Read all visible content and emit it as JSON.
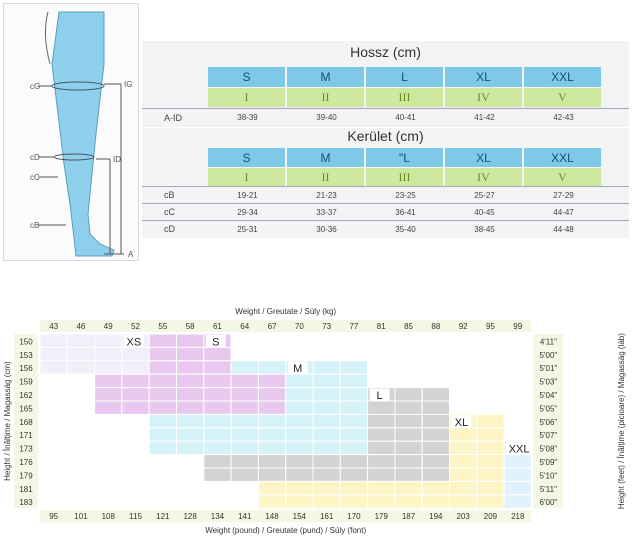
{
  "leg": {
    "labels": {
      "cG": "cG",
      "IG": "IG",
      "cD": "cD",
      "ID": "ID",
      "cC": "cC",
      "cB": "cB",
      "A": "A"
    }
  },
  "length_table": {
    "title": "Hossz (cm)",
    "sizes": [
      "S",
      "M",
      "L",
      "XL",
      "XXL"
    ],
    "roman": [
      "I",
      "II",
      "III",
      "IV",
      "V"
    ],
    "rows": [
      {
        "label": "A-ID",
        "values": [
          "38-39",
          "39-40",
          "40-41",
          "41-42",
          "42-43"
        ]
      }
    ]
  },
  "circ_table": {
    "title": "Kerület (cm)",
    "sizes": [
      "S",
      "M",
      "\"L",
      "XL",
      "XXL"
    ],
    "roman": [
      "I",
      "II",
      "III",
      "IV",
      "V"
    ],
    "rows": [
      {
        "label": "cB",
        "values": [
          "19-21",
          "21-23",
          "23-25",
          "25-27",
          "27-29"
        ]
      },
      {
        "label": "cC",
        "values": [
          "29-34",
          "33-37",
          "36-41",
          "40-45",
          "44-47"
        ]
      },
      {
        "label": "cD",
        "values": [
          "25-31",
          "30-36",
          "35-40",
          "38-45",
          "44-48"
        ]
      }
    ]
  },
  "chart_data": {
    "type": "heatmap",
    "top_axis_title": "Weight / Greutate / Súly (kg)",
    "bottom_axis_title": "Weight (pound) / Greutate (pund) / Súly (font)",
    "left_axis_title": "Height / Înălțime / Magasság (cm)",
    "right_axis_title": "Height (feet) / Înălțime (picioare) / Magasság (láb)",
    "weights_kg": [
      "43",
      "46",
      "49",
      "52",
      "55",
      "58",
      "61",
      "64",
      "67",
      "70",
      "73",
      "77",
      "81",
      "85",
      "88",
      "92",
      "95",
      "99"
    ],
    "weights_lb": [
      "95",
      "101",
      "108",
      "115",
      "121",
      "128",
      "134",
      "141",
      "148",
      "154",
      "161",
      "170",
      "179",
      "187",
      "194",
      "203",
      "209",
      "218"
    ],
    "heights_cm": [
      "150",
      "153",
      "156",
      "159",
      "162",
      "165",
      "168",
      "171",
      "173",
      "176",
      "179",
      "181",
      "183"
    ],
    "heights_ft": [
      "4'11\"",
      "5'00\"",
      "5'01\"",
      "5'03\"",
      "5'04\"",
      "5'05\"",
      "5'06\"",
      "5'07\"",
      "5'08\"",
      "5'09\"",
      "5'10\"",
      "5'11\"",
      "6'00\""
    ],
    "zones": [
      {
        "name": "XS",
        "color": "#f2eefa",
        "cells": [
          [
            0,
            0
          ],
          [
            1,
            0
          ],
          [
            2,
            0
          ],
          [
            3,
            0
          ],
          [
            0,
            1
          ],
          [
            1,
            1
          ],
          [
            2,
            1
          ],
          [
            3,
            1
          ],
          [
            0,
            2
          ],
          [
            1,
            2
          ],
          [
            2,
            2
          ],
          [
            3,
            2
          ]
        ]
      },
      {
        "name": "S",
        "color": "#e8c8ee",
        "cells": [
          [
            4,
            0
          ],
          [
            5,
            0
          ],
          [
            6,
            0
          ],
          [
            4,
            1
          ],
          [
            5,
            1
          ],
          [
            6,
            1
          ],
          [
            4,
            2
          ],
          [
            5,
            2
          ],
          [
            6,
            2
          ],
          [
            2,
            3
          ],
          [
            3,
            3
          ],
          [
            4,
            3
          ],
          [
            5,
            3
          ],
          [
            6,
            3
          ],
          [
            7,
            3
          ],
          [
            8,
            3
          ],
          [
            2,
            4
          ],
          [
            3,
            4
          ],
          [
            4,
            4
          ],
          [
            5,
            4
          ],
          [
            6,
            4
          ],
          [
            7,
            4
          ],
          [
            8,
            4
          ],
          [
            2,
            5
          ],
          [
            3,
            5
          ],
          [
            4,
            5
          ],
          [
            5,
            5
          ],
          [
            6,
            5
          ],
          [
            7,
            5
          ],
          [
            8,
            5
          ]
        ]
      },
      {
        "name": "M",
        "color": "#d5f2f8",
        "cells": [
          [
            7,
            2
          ],
          [
            8,
            2
          ],
          [
            9,
            2
          ],
          [
            10,
            2
          ],
          [
            11,
            2
          ],
          [
            9,
            3
          ],
          [
            10,
            3
          ],
          [
            11,
            3
          ],
          [
            9,
            4
          ],
          [
            10,
            4
          ],
          [
            11,
            4
          ],
          [
            9,
            5
          ],
          [
            10,
            5
          ],
          [
            11,
            5
          ],
          [
            4,
            6
          ],
          [
            5,
            6
          ],
          [
            6,
            6
          ],
          [
            7,
            6
          ],
          [
            8,
            6
          ],
          [
            9,
            6
          ],
          [
            10,
            6
          ],
          [
            11,
            6
          ],
          [
            4,
            7
          ],
          [
            5,
            7
          ],
          [
            6,
            7
          ],
          [
            7,
            7
          ],
          [
            8,
            7
          ],
          [
            9,
            7
          ],
          [
            10,
            7
          ],
          [
            11,
            7
          ],
          [
            4,
            8
          ],
          [
            5,
            8
          ],
          [
            6,
            8
          ],
          [
            7,
            8
          ],
          [
            8,
            8
          ],
          [
            9,
            8
          ],
          [
            10,
            8
          ],
          [
            11,
            8
          ]
        ]
      },
      {
        "name": "L",
        "color": "#d3d3d3",
        "cells": [
          [
            12,
            4
          ],
          [
            13,
            4
          ],
          [
            14,
            4
          ],
          [
            12,
            5
          ],
          [
            13,
            5
          ],
          [
            14,
            5
          ],
          [
            12,
            6
          ],
          [
            13,
            6
          ],
          [
            14,
            6
          ],
          [
            12,
            7
          ],
          [
            13,
            7
          ],
          [
            14,
            7
          ],
          [
            12,
            8
          ],
          [
            13,
            8
          ],
          [
            14,
            8
          ],
          [
            6,
            9
          ],
          [
            7,
            9
          ],
          [
            8,
            9
          ],
          [
            9,
            9
          ],
          [
            10,
            9
          ],
          [
            11,
            9
          ],
          [
            12,
            9
          ],
          [
            13,
            9
          ],
          [
            14,
            9
          ],
          [
            6,
            10
          ],
          [
            7,
            10
          ],
          [
            8,
            10
          ],
          [
            9,
            10
          ],
          [
            10,
            10
          ],
          [
            11,
            10
          ],
          [
            12,
            10
          ],
          [
            13,
            10
          ],
          [
            14,
            10
          ]
        ]
      },
      {
        "name": "XL",
        "color": "#fdf5c5",
        "cells": [
          [
            15,
            6
          ],
          [
            16,
            6
          ],
          [
            15,
            7
          ],
          [
            16,
            7
          ],
          [
            15,
            8
          ],
          [
            16,
            8
          ],
          [
            15,
            9
          ],
          [
            16,
            9
          ],
          [
            15,
            10
          ],
          [
            16,
            10
          ],
          [
            8,
            11
          ],
          [
            9,
            11
          ],
          [
            10,
            11
          ],
          [
            11,
            11
          ],
          [
            12,
            11
          ],
          [
            13,
            11
          ],
          [
            14,
            11
          ],
          [
            15,
            11
          ],
          [
            16,
            11
          ],
          [
            8,
            12
          ],
          [
            9,
            12
          ],
          [
            10,
            12
          ],
          [
            11,
            12
          ],
          [
            12,
            12
          ],
          [
            13,
            12
          ],
          [
            14,
            12
          ],
          [
            15,
            12
          ],
          [
            16,
            12
          ]
        ]
      },
      {
        "name": "XXL",
        "color": "#e0f3fc",
        "cells": [
          [
            17,
            8
          ],
          [
            17,
            9
          ],
          [
            17,
            10
          ],
          [
            17,
            11
          ],
          [
            17,
            12
          ]
        ]
      }
    ]
  }
}
